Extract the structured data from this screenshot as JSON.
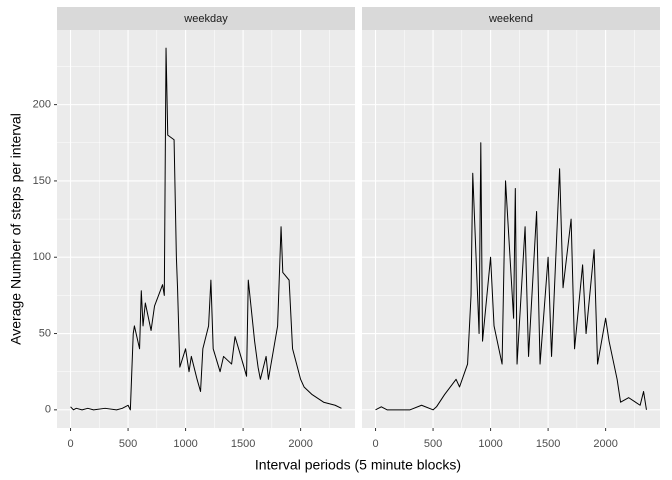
{
  "chart_data": {
    "type": "line",
    "x_label": "Interval periods (5 minute blocks)",
    "y_label": "Average Number of steps per interval",
    "xlim": [
      -117.75,
      2472.75
    ],
    "ylim": [
      -11.9,
      248.9
    ],
    "xticks": [
      0,
      500,
      1000,
      1500,
      2000
    ],
    "yticks": [
      0,
      50,
      100,
      150,
      200
    ],
    "minor_xticks": [
      250,
      750,
      1250,
      1750,
      2250
    ],
    "minor_yticks": [
      25,
      75,
      125,
      175,
      225
    ],
    "grid": true,
    "color": "#000000",
    "facets": [
      {
        "title": "weekday",
        "x": [
          0,
          25,
          50,
          100,
          150,
          200,
          300,
          400,
          450,
          500,
          520,
          530,
          545,
          555,
          600,
          615,
          630,
          650,
          700,
          730,
          800,
          815,
          830,
          845,
          900,
          920,
          930,
          950,
          1000,
          1030,
          1050,
          1100,
          1130,
          1150,
          1200,
          1220,
          1240,
          1300,
          1330,
          1400,
          1430,
          1500,
          1530,
          1545,
          1600,
          1630,
          1650,
          1700,
          1720,
          1800,
          1830,
          1845,
          1900,
          1930,
          2000,
          2030,
          2100,
          2200,
          2300,
          2355
        ],
        "values": [
          2,
          0,
          1,
          0,
          1,
          0,
          1,
          0,
          1,
          3,
          0,
          20,
          50,
          55,
          40,
          78,
          55,
          70,
          52,
          68,
          82,
          75,
          237,
          180,
          177,
          100,
          80,
          28,
          40,
          25,
          35,
          20,
          12,
          40,
          55,
          85,
          40,
          25,
          35,
          30,
          48,
          30,
          22,
          85,
          45,
          28,
          20,
          35,
          20,
          55,
          120,
          90,
          85,
          40,
          20,
          15,
          10,
          5,
          3,
          1
        ]
      },
      {
        "title": "weekend",
        "x": [
          0,
          50,
          100,
          300,
          400,
          500,
          530,
          600,
          700,
          730,
          800,
          830,
          845,
          900,
          915,
          930,
          1000,
          1030,
          1100,
          1130,
          1200,
          1215,
          1230,
          1300,
          1330,
          1400,
          1430,
          1500,
          1530,
          1600,
          1630,
          1700,
          1730,
          1800,
          1830,
          1900,
          1930,
          2000,
          2030,
          2100,
          2130,
          2200,
          2300,
          2330,
          2355
        ],
        "values": [
          0,
          2,
          0,
          0,
          3,
          0,
          2,
          10,
          20,
          15,
          30,
          75,
          155,
          50,
          175,
          45,
          100,
          55,
          30,
          150,
          60,
          145,
          30,
          120,
          35,
          130,
          30,
          100,
          35,
          158,
          80,
          125,
          40,
          95,
          50,
          105,
          30,
          60,
          45,
          20,
          5,
          8,
          3,
          12,
          0
        ]
      }
    ]
  }
}
